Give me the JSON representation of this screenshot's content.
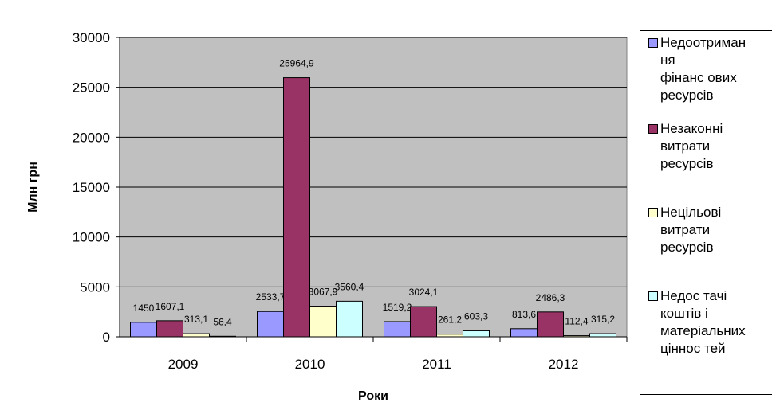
{
  "chart_data": {
    "type": "bar",
    "categories": [
      "2009",
      "2010",
      "2011",
      "2012"
    ],
    "series": [
      {
        "name": "Недоотримання фінансових ресурсів",
        "values": [
          1450,
          2533.7,
          1519.2,
          813.6
        ],
        "labels": [
          "1450",
          "2533,7",
          "1519,2",
          "813,6"
        ],
        "color": "#9999ff"
      },
      {
        "name": "Незаконні витрати ресурсів",
        "values": [
          1607.1,
          25964.9,
          3024.1,
          2486.3
        ],
        "labels": [
          "1607,1",
          "25964,9",
          "3024,1",
          "2486,3"
        ],
        "color": "#993366"
      },
      {
        "name": "Нецільові витрати ресурсів",
        "values": [
          313.1,
          3067.9,
          261.2,
          112.4
        ],
        "labels": [
          "313,1",
          "3067,9",
          "261,2",
          "112,4"
        ],
        "color": "#ffffcc"
      },
      {
        "name": "Недостачі коштів і матеріальних цінностей",
        "values": [
          56.4,
          3560.4,
          603.3,
          315.2
        ],
        "labels": [
          "56,4",
          "3560,4",
          "603,3",
          "315,2"
        ],
        "color": "#ccffff"
      }
    ],
    "xlabel": "Роки",
    "ylabel": "Млн грн",
    "ylim": [
      0,
      30000
    ],
    "yticks": [
      "0",
      "5000",
      "10000",
      "15000",
      "20000",
      "25000",
      "30000"
    ],
    "yticks_values": [
      0,
      5000,
      10000,
      15000,
      20000,
      25000,
      30000
    ],
    "grid": true,
    "plot_background": "#c0c0c0",
    "legend": {
      "placement": "right",
      "items": [
        "Недоотриман\nня\nфінанс ових\nресурсів",
        "Незаконні\nвитрати\nресурсів",
        "Нецільові\nвитрати\nресурсів",
        "Недос тачі\nкоштів і\nматеріальних\nціннос тей"
      ]
    }
  }
}
